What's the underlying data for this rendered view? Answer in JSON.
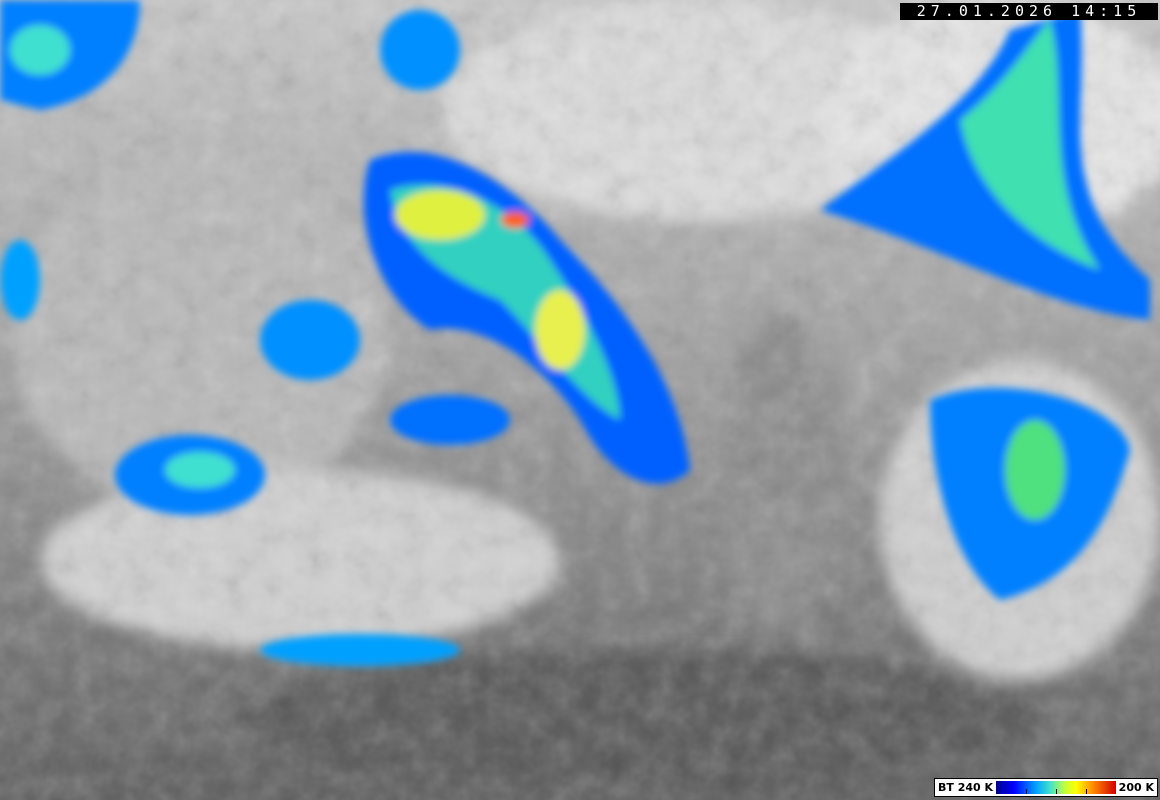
{
  "timestamp": "27.01.2026 14:15",
  "legend": {
    "left_label": "BT 240 K",
    "right_label": "200 K",
    "colormap": [
      "#00008f",
      "#0000ff",
      "#00a0ff",
      "#40e0d0",
      "#c0ff40",
      "#ffff00",
      "#ff8000",
      "#d00000"
    ]
  }
}
